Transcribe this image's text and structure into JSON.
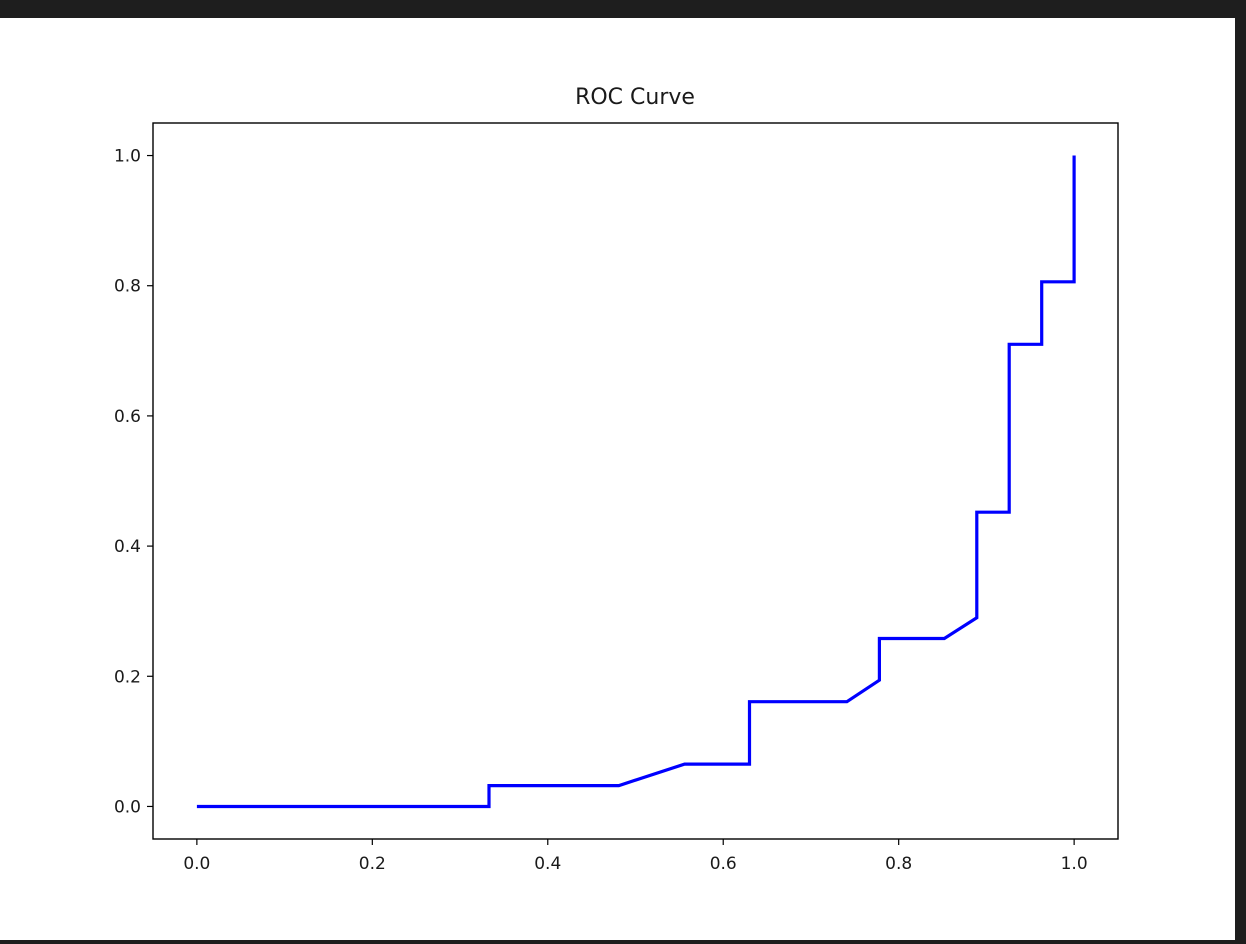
{
  "chart_data": {
    "type": "line",
    "title": "ROC Curve",
    "xlabel": "",
    "ylabel": "",
    "xlim": [
      -0.05,
      1.05
    ],
    "ylim": [
      -0.05,
      1.05
    ],
    "x_ticks": [
      0.0,
      0.2,
      0.4,
      0.6,
      0.8,
      1.0
    ],
    "x_tick_labels": [
      "0.0",
      "0.2",
      "0.4",
      "0.6",
      "0.8",
      "1.0"
    ],
    "y_ticks": [
      0.0,
      0.2,
      0.4,
      0.6,
      0.8,
      1.0
    ],
    "y_tick_labels": [
      "0.0",
      "0.2",
      "0.4",
      "0.6",
      "0.8",
      "1.0"
    ],
    "grid": false,
    "legend": "none",
    "series": [
      {
        "color": "#0000ff",
        "x": [
          0.0,
          0.333,
          0.333,
          0.481,
          0.556,
          0.63,
          0.63,
          0.741,
          0.778,
          0.778,
          0.852,
          0.889,
          0.889,
          0.926,
          0.926,
          0.963,
          0.963,
          1.0,
          1.0
        ],
        "y": [
          0.0,
          0.0,
          0.032,
          0.032,
          0.065,
          0.065,
          0.161,
          0.161,
          0.194,
          0.258,
          0.258,
          0.29,
          0.452,
          0.452,
          0.71,
          0.71,
          0.806,
          0.806,
          1.0
        ]
      }
    ]
  }
}
